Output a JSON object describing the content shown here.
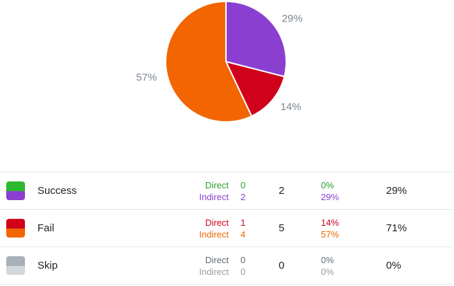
{
  "chart_data": {
    "type": "pie",
    "slices": [
      {
        "label": "Indirect",
        "value": 29,
        "display": "29%",
        "color": "#8a3fd1"
      },
      {
        "label": "Direct",
        "value": 14,
        "display": "14%",
        "color": "#d0021b"
      },
      {
        "label": "Indirect",
        "value": 57,
        "display": "57%",
        "color": "#f26500"
      }
    ]
  },
  "table": {
    "rows": [
      {
        "label": "Success",
        "top_color": "#2eb82e",
        "bottom_color": "#8a3fd1",
        "sub": [
          {
            "label": "Direct",
            "count": "0",
            "pct": "0%",
            "color": "#2a9d2a"
          },
          {
            "label": "Indirect",
            "count": "2",
            "pct": "29%",
            "color": "#8a3fd1"
          }
        ],
        "total": "2",
        "pct": "29%"
      },
      {
        "label": "Fail",
        "top_color": "#d0021b",
        "bottom_color": "#f26500",
        "sub": [
          {
            "label": "Direct",
            "count": "1",
            "pct": "14%",
            "color": "#d0021b"
          },
          {
            "label": "Indirect",
            "count": "4",
            "pct": "57%",
            "color": "#f26500"
          }
        ],
        "total": "5",
        "pct": "71%"
      },
      {
        "label": "Skip",
        "top_color": "#a7b0b8",
        "bottom_color": "#d3d8dc",
        "sub": [
          {
            "label": "Direct",
            "count": "0",
            "pct": "0%",
            "color": "#5f6b76"
          },
          {
            "label": "Indirect",
            "count": "0",
            "pct": "0%",
            "color": "#939ca4"
          }
        ],
        "total": "0",
        "pct": "0%"
      }
    ]
  }
}
